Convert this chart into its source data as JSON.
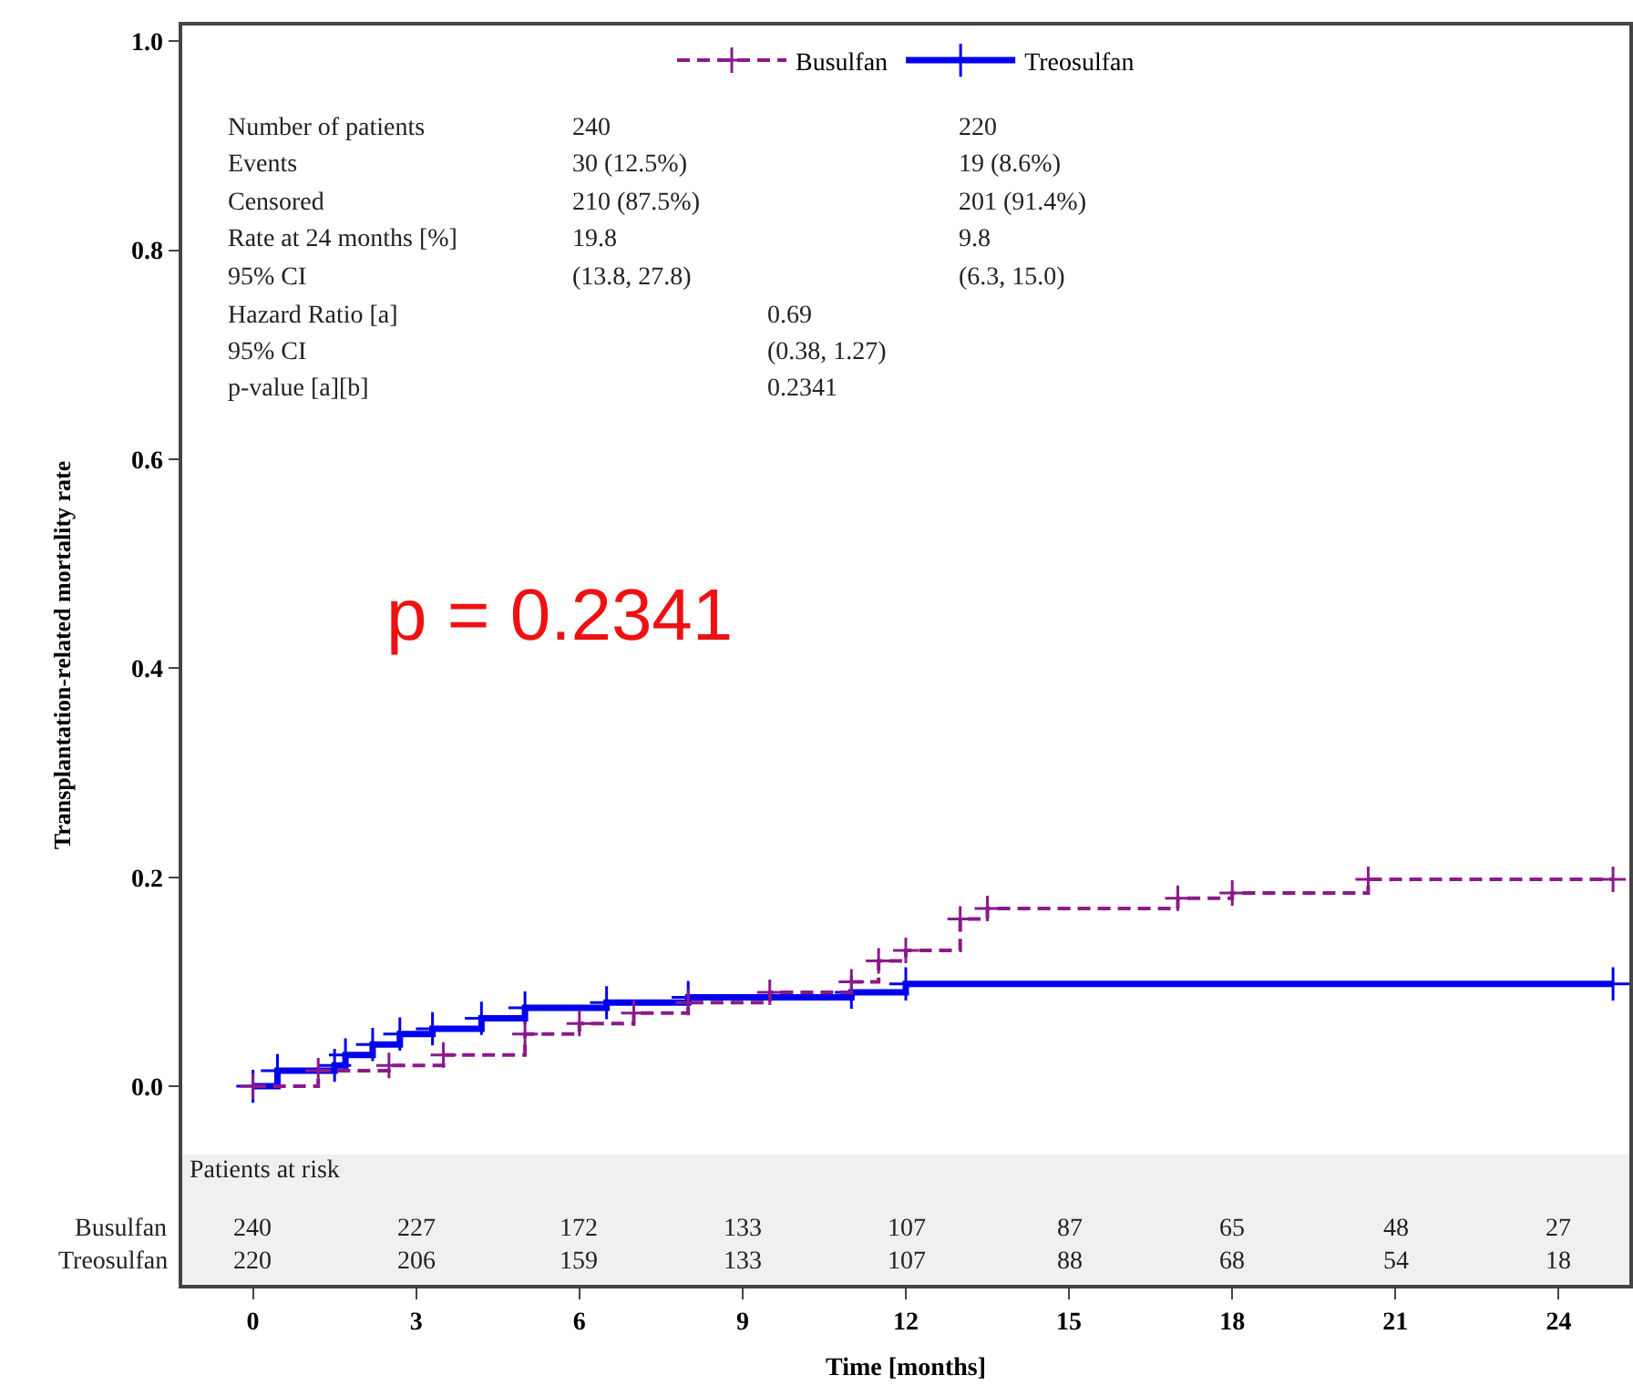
{
  "chart_data": {
    "type": "step",
    "xlabel": "Time [months]",
    "ylabel": "Transplantation-related mortality rate",
    "xlim": [
      -1.3,
      25.3
    ],
    "ylim": [
      -0.19,
      1.015
    ],
    "xticks": [
      0,
      3,
      6,
      9,
      12,
      15,
      18,
      21,
      24
    ],
    "yticks": [
      {
        "value": 0,
        "label": "0.0"
      },
      {
        "value": 0.2,
        "label": "0.2"
      },
      {
        "value": 0.4,
        "label": "0.4"
      },
      {
        "value": 0.6,
        "label": "0.6"
      },
      {
        "value": 0.8,
        "label": "0.8"
      },
      {
        "value": 1,
        "label": "1.0"
      }
    ],
    "grid": false,
    "legend": "top",
    "marker": "cross",
    "series": [
      {
        "name": "Busulfan",
        "color": "#8b1a8b",
        "line_style": "dashed",
        "x": [
          0,
          1.2,
          2.5,
          3.5,
          5,
          6,
          7,
          8,
          9.5,
          11,
          11.5,
          12,
          13,
          13.5,
          17,
          18,
          20.5,
          25
        ],
        "values": [
          0,
          0.015,
          0.02,
          0.03,
          0.05,
          0.06,
          0.07,
          0.08,
          0.09,
          0.1,
          0.12,
          0.13,
          0.16,
          0.17,
          0.18,
          0.185,
          0.198,
          0.198
        ]
      },
      {
        "name": "Treosulfan",
        "color": "#0000ee",
        "line_style": "solid",
        "x": [
          0,
          0.45,
          1.5,
          1.7,
          2.2,
          2.7,
          3.3,
          4.2,
          5,
          6.5,
          8,
          11,
          12,
          25
        ],
        "values": [
          0,
          0.015,
          0.02,
          0.03,
          0.04,
          0.05,
          0.055,
          0.065,
          0.075,
          0.08,
          0.085,
          0.09,
          0.098,
          0.098
        ]
      }
    ],
    "bands": [
      {
        "axis": "y",
        "from": -0.19,
        "to": -0.065,
        "label": "Patients at risk",
        "color": "#f0f0f0"
      }
    ],
    "annotations": [
      "p = 0.2341",
      "Number of patients",
      "240",
      "220",
      "Events",
      "30 (12.5%)",
      "19 (8.6%)",
      "Censored",
      "210 (87.5%)",
      "201 (91.4%)",
      "Rate at 24 months [%]",
      "19.8",
      "9.8",
      "95% CI",
      "(13.8, 27.8)",
      "(6.3, 15.0)",
      "Hazard Ratio [a]",
      "0.69",
      "95% CI",
      "(0.38, 1.27)",
      "p-value [a][b]",
      "0.2341",
      "Busulfan",
      "Treosulfan",
      "240",
      "227",
      "172",
      "133",
      "107",
      "87",
      "65",
      "48",
      "27",
      "220",
      "206",
      "159",
      "133",
      "107",
      "88",
      "68",
      "54",
      "18"
    ]
  }
}
